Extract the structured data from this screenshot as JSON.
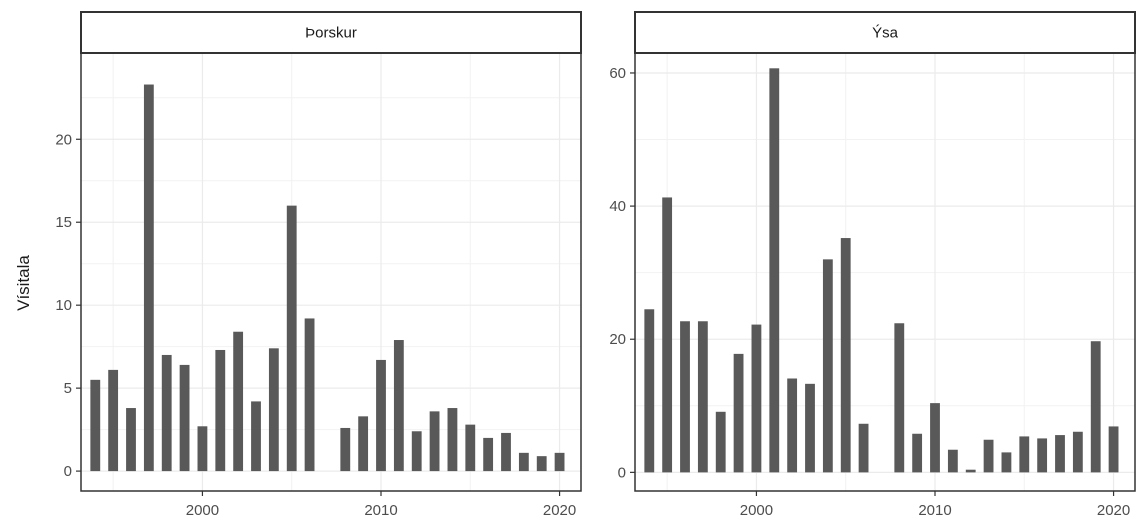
{
  "chart_data": {
    "type": "bar",
    "ylabel": "Vísitala",
    "xlabel": "",
    "grid": true,
    "colors": {
      "bar": "#595959",
      "grid_major": "#ebebeb",
      "grid_minor": "#f2f2f2",
      "border": "#333333",
      "strip_bg": "#ffffff"
    },
    "panels": [
      {
        "title": "Þorskur",
        "xlim": [
          1993.2,
          2021.2
        ],
        "ylim": [
          -1.2,
          25.2
        ],
        "x_ticks": [
          2000,
          2010,
          2020
        ],
        "y_ticks": [
          0,
          5,
          10,
          15,
          20
        ],
        "x": [
          1994,
          1995,
          1996,
          1997,
          1998,
          1999,
          2000,
          2001,
          2002,
          2003,
          2004,
          2005,
          2006,
          2008,
          2009,
          2010,
          2011,
          2012,
          2013,
          2014,
          2015,
          2016,
          2017,
          2018,
          2019,
          2020
        ],
        "values": [
          5.5,
          6.1,
          3.8,
          23.3,
          7.0,
          6.4,
          2.7,
          7.3,
          8.4,
          4.2,
          7.4,
          16.0,
          9.2,
          2.6,
          3.3,
          6.7,
          7.9,
          2.4,
          3.6,
          3.8,
          2.8,
          2.0,
          2.3,
          1.1,
          0.9,
          1.1
        ]
      },
      {
        "title": "Ýsa",
        "xlim": [
          1993.2,
          2021.2
        ],
        "ylim": [
          -2.8,
          63.0
        ],
        "x_ticks": [
          2000,
          2010,
          2020
        ],
        "y_ticks": [
          0,
          20,
          40,
          60
        ],
        "x": [
          1994,
          1995,
          1996,
          1997,
          1998,
          1999,
          2000,
          2001,
          2002,
          2003,
          2004,
          2005,
          2006,
          2008,
          2009,
          2010,
          2011,
          2012,
          2013,
          2014,
          2015,
          2016,
          2017,
          2018,
          2019,
          2020
        ],
        "values": [
          24.5,
          41.3,
          22.7,
          22.7,
          9.1,
          17.8,
          22.2,
          60.7,
          14.1,
          13.3,
          32.0,
          35.2,
          7.3,
          22.4,
          5.8,
          10.4,
          3.4,
          0.4,
          4.9,
          3.0,
          5.4,
          5.1,
          5.6,
          6.1,
          19.7,
          6.9
        ]
      }
    ]
  }
}
